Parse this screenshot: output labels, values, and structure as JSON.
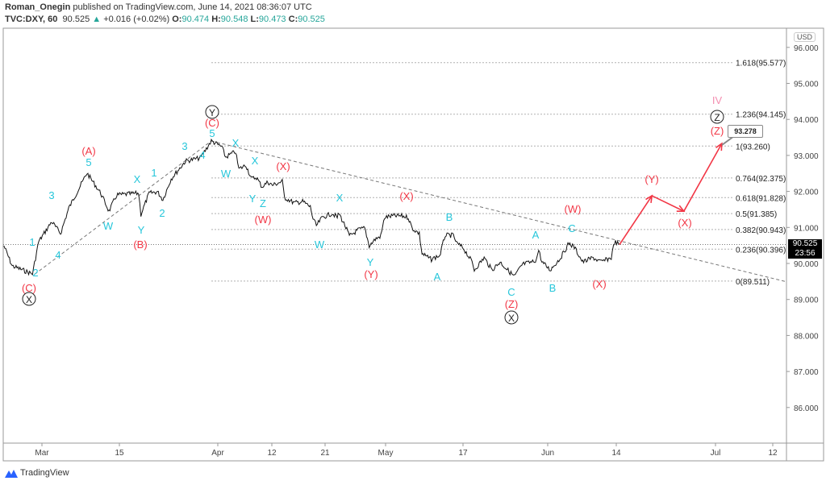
{
  "header": {
    "author": "Roman_Onegin",
    "published_text": "published on TradingView.com, June 14, 2021 08:36:07 UTC",
    "symbol": "TVC:DXY, 60",
    "last": "90.525",
    "change": "+0.016 (+0.02%)",
    "o_label": "O:",
    "o": "90.474",
    "h_label": "H:",
    "h": "90.548",
    "l_label": "L:",
    "l": "90.473",
    "c_label": "C:",
    "c": "90.525"
  },
  "price_scale": {
    "currency": "USD",
    "current_price": "90.525",
    "countdown": "23:56"
  },
  "callout": "93.278",
  "footer": {
    "brand": "TradingView"
  },
  "colors": {
    "teal": "#26c6da",
    "red": "#f23645",
    "pink": "#f48fb1",
    "line": "#111111",
    "grid": "#b0b0b0"
  },
  "chart_data": {
    "type": "line",
    "title": "TVC:DXY, 60",
    "x_unit": "days since Mar 1, 2021",
    "ylim": [
      85.2,
      96.6
    ],
    "y_ticks": [
      "96.000",
      "95.000",
      "94.000",
      "93.000",
      "92.000",
      "91.000",
      "90.000",
      "89.000",
      "88.000",
      "87.000",
      "86.000"
    ],
    "y_tick_values": [
      96,
      95,
      94,
      93,
      92,
      91,
      90,
      89,
      88,
      87,
      86
    ],
    "x_ticks": [
      "Mar",
      "15",
      "Apr",
      "12",
      "21",
      "May",
      "17",
      "Jun",
      "14",
      "Jul",
      "12"
    ],
    "price_path": [
      [
        -7.5,
        90.49
      ],
      [
        -6.0,
        89.93
      ],
      [
        -2.3,
        89.71
      ],
      [
        -1.2,
        90.6
      ],
      [
        1.2,
        91.16
      ],
      [
        2.8,
        90.83
      ],
      [
        4.3,
        91.54
      ],
      [
        7.6,
        92.51
      ],
      [
        10.1,
        91.95
      ],
      [
        11.6,
        91.45
      ],
      [
        13.0,
        91.9
      ],
      [
        17.0,
        91.95
      ],
      [
        17.4,
        91.36
      ],
      [
        18.9,
        91.95
      ],
      [
        20.4,
        91.99
      ],
      [
        21.4,
        91.77
      ],
      [
        22.9,
        92.35
      ],
      [
        25.5,
        92.84
      ],
      [
        28.2,
        92.93
      ],
      [
        30.2,
        93.4
      ],
      [
        32.1,
        93.24
      ],
      [
        32.8,
        92.95
      ],
      [
        34.6,
        93.11
      ],
      [
        35.2,
        92.62
      ],
      [
        36.5,
        92.73
      ],
      [
        37.5,
        92.35
      ],
      [
        38.4,
        92.39
      ],
      [
        39.4,
        92.13
      ],
      [
        40.5,
        92.26
      ],
      [
        41.3,
        92.17
      ],
      [
        43.1,
        92.28
      ],
      [
        43.5,
        91.83
      ],
      [
        45.3,
        91.68
      ],
      [
        46.8,
        91.72
      ],
      [
        48.2,
        91.57
      ],
      [
        48.7,
        91.23
      ],
      [
        49.3,
        91.05
      ],
      [
        50.4,
        91.28
      ],
      [
        52.2,
        91.39
      ],
      [
        53.1,
        91.28
      ],
      [
        53.4,
        91.39
      ],
      [
        54.5,
        91.05
      ],
      [
        55.3,
        90.76
      ],
      [
        57.0,
        90.94
      ],
      [
        58.1,
        90.98
      ],
      [
        58.9,
        90.49
      ],
      [
        60.0,
        90.67
      ],
      [
        61.0,
        90.76
      ],
      [
        61.7,
        91.28
      ],
      [
        63.3,
        91.32
      ],
      [
        64.8,
        91.32
      ],
      [
        66.0,
        91.28
      ],
      [
        66.7,
        90.98
      ],
      [
        68.0,
        90.83
      ],
      [
        68.5,
        90.27
      ],
      [
        70.2,
        90.11
      ],
      [
        71.3,
        90.2
      ],
      [
        71.7,
        90.2
      ],
      [
        72.7,
        90.78
      ],
      [
        74.2,
        90.78
      ],
      [
        74.8,
        90.56
      ],
      [
        76.0,
        90.43
      ],
      [
        77.6,
        90.04
      ],
      [
        78.0,
        89.82
      ],
      [
        79.8,
        90.16
      ],
      [
        81.2,
        89.82
      ],
      [
        82.7,
        90.04
      ],
      [
        84.5,
        89.75
      ],
      [
        85.3,
        89.64
      ],
      [
        86.8,
        89.98
      ],
      [
        88.6,
        90.04
      ],
      [
        89.3,
        90.11
      ],
      [
        89.7,
        90.38
      ],
      [
        90.3,
        90.04
      ],
      [
        91.8,
        89.82
      ],
      [
        93.7,
        90.16
      ],
      [
        95.2,
        90.56
      ],
      [
        96.2,
        90.45
      ],
      [
        97.7,
        90.04
      ],
      [
        99.6,
        90.16
      ],
      [
        101.0,
        90.04
      ],
      [
        102.1,
        90.11
      ],
      [
        102.9,
        90.16
      ],
      [
        103.5,
        90.6
      ],
      [
        104.4,
        90.525
      ]
    ],
    "projection": [
      [
        104.4,
        90.525
      ],
      [
        110.3,
        91.88
      ],
      [
        116.1,
        91.45
      ],
      [
        123.0,
        93.33
      ]
    ],
    "trendlines": [
      [
        [
          -1.9,
          89.7
        ],
        [
          30.2,
          93.4
        ]
      ],
      [
        [
          30.2,
          93.4
        ],
        [
          134.8,
          89.49
        ]
      ]
    ],
    "fib_levels": [
      {
        "label": "1.618(95.577)",
        "value": 95.577
      },
      {
        "label": "1.236(94.145)",
        "value": 94.145
      },
      {
        "label": "1(93.260)",
        "value": 93.26
      },
      {
        "label": "0.764(92.375)",
        "value": 92.375
      },
      {
        "label": "0.618(91.828)",
        "value": 91.828
      },
      {
        "label": "0.5(91.385)",
        "value": 91.385
      },
      {
        "label": "0.382(90.943)",
        "value": 90.943
      },
      {
        "label": "0.236(90.396)",
        "value": 90.396
      },
      {
        "label": "0(89.511)",
        "value": 89.511
      }
    ],
    "wave_labels": [
      {
        "t": "1",
        "c": "teal"
      },
      {
        "t": "2",
        "c": "teal"
      },
      {
        "t": "4",
        "c": "teal"
      },
      {
        "t": "3",
        "c": "teal"
      },
      {
        "t": "5",
        "c": "teal"
      },
      {
        "t": "W",
        "c": "teal"
      },
      {
        "t": "X",
        "c": "teal"
      },
      {
        "t": "Y",
        "c": "teal"
      },
      {
        "t": "1",
        "c": "teal"
      },
      {
        "t": "2",
        "c": "teal"
      },
      {
        "t": "3",
        "c": "teal"
      },
      {
        "t": "4",
        "c": "teal"
      },
      {
        "t": "5",
        "c": "teal"
      },
      {
        "t": "X",
        "c": "teal"
      },
      {
        "t": "W",
        "c": "teal"
      },
      {
        "t": "X",
        "c": "teal"
      },
      {
        "t": "Y",
        "c": "teal"
      },
      {
        "t": "Z",
        "c": "teal"
      },
      {
        "t": "X",
        "c": "teal"
      },
      {
        "t": "W",
        "c": "teal"
      },
      {
        "t": "Y",
        "c": "teal"
      },
      {
        "t": "B",
        "c": "teal"
      },
      {
        "t": "A",
        "c": "teal"
      },
      {
        "t": "C",
        "c": "teal"
      },
      {
        "t": "A",
        "c": "teal"
      },
      {
        "t": "C",
        "c": "teal"
      },
      {
        "t": "B",
        "c": "teal"
      },
      {
        "t": "(A)",
        "c": "red"
      },
      {
        "t": "(B)",
        "c": "red"
      },
      {
        "t": "(C)",
        "c": "red"
      },
      {
        "t": "(C)",
        "c": "red"
      },
      {
        "t": "(X)",
        "c": "red"
      },
      {
        "t": "(W)",
        "c": "red"
      },
      {
        "t": "(X)",
        "c": "red"
      },
      {
        "t": "(Y)",
        "c": "red"
      },
      {
        "t": "(Z)",
        "c": "red"
      },
      {
        "t": "(W)",
        "c": "red"
      },
      {
        "t": "(X)",
        "c": "red"
      },
      {
        "t": "(Y)",
        "c": "red"
      },
      {
        "t": "(X)",
        "c": "red"
      },
      {
        "t": "(Z)",
        "c": "red"
      },
      {
        "t": "IV",
        "c": "pink"
      }
    ],
    "circled_labels": [
      "X",
      "Y",
      "X",
      "Z"
    ]
  }
}
